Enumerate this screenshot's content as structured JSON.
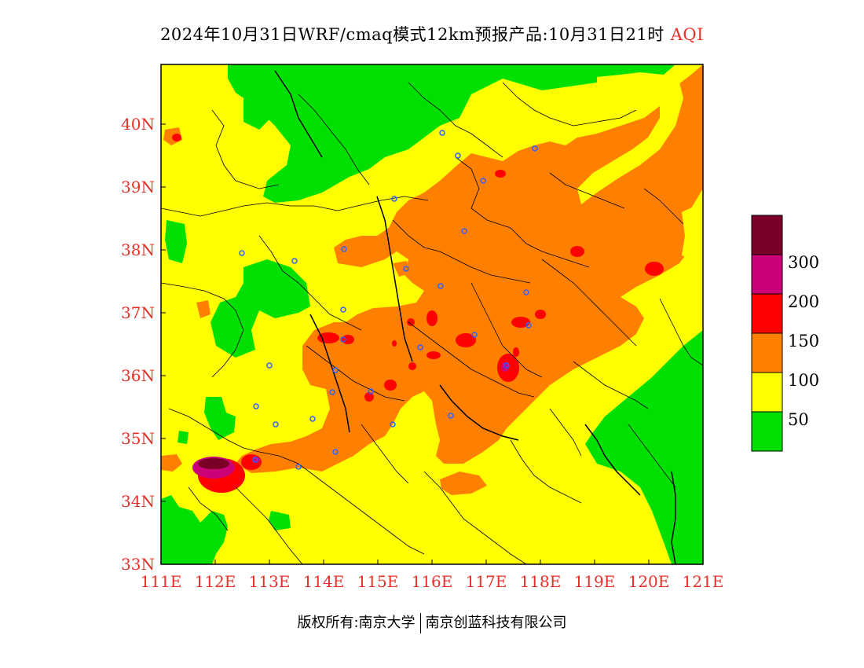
{
  "header": {
    "title": "2024年10月31日WRF/cmaq模式12km预报产品:10月31日21时",
    "variable": "AQI"
  },
  "axes": {
    "x_ticks": [
      "111E",
      "112E",
      "113E",
      "114E",
      "115E",
      "116E",
      "117E",
      "118E",
      "119E",
      "120E",
      "121E"
    ],
    "y_ticks": [
      "33N",
      "34N",
      "35N",
      "36N",
      "37N",
      "38N",
      "39N",
      "40N"
    ]
  },
  "legend": {
    "labels": [
      "50",
      "100",
      "150",
      "200",
      "300"
    ],
    "colors": [
      "#00e000",
      "#ffff00",
      "#ff8000",
      "#ff0000",
      "#cc0077",
      "#7a0028"
    ]
  },
  "footer": {
    "copyright_label": "版权所有:",
    "org1": "南京大学",
    "org2": "南京创蓝科技有限公司"
  },
  "colors": {
    "good": "#00e000",
    "moderate": "#ffff00",
    "sensitive": "#ff8000",
    "unhealthy": "#ff0000",
    "very_unhealthy": "#cc0077",
    "hazardous": "#7a0028",
    "tick_label": "#e8312a"
  }
}
